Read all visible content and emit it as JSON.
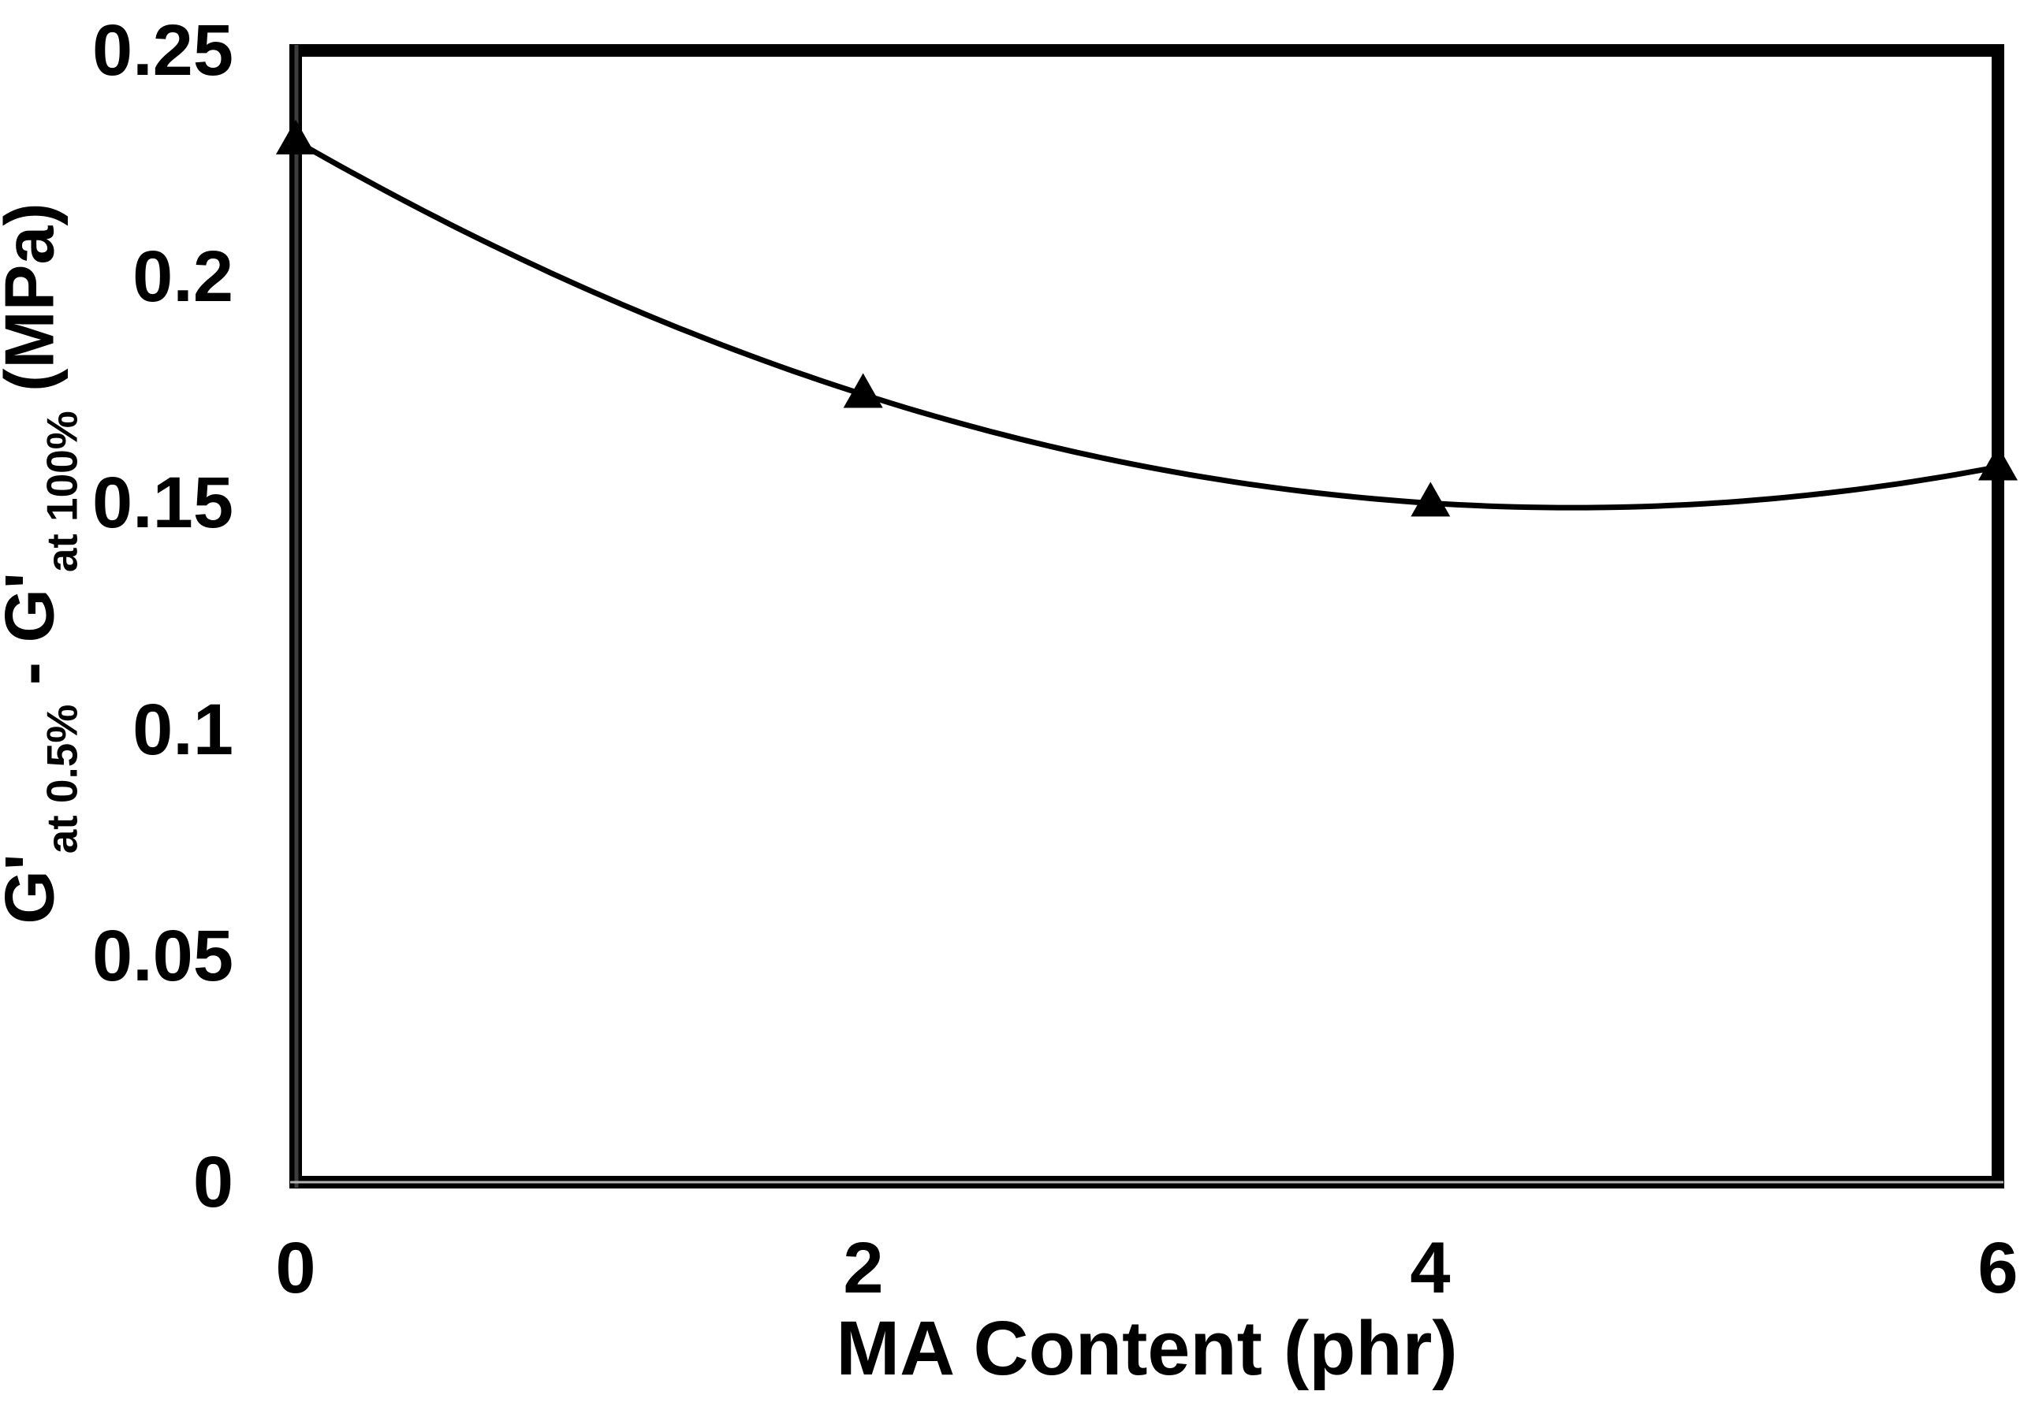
{
  "chart_data": {
    "type": "scatter",
    "title": "",
    "xlabel": "MA Content (phr)",
    "ylabel": "G'at 0.5% - G'at 100% (MPa)",
    "ylabel_parts": [
      {
        "text": "G'",
        "sub": false
      },
      {
        "text": "at 0.5%",
        "sub": true
      },
      {
        "text": " - ",
        "sub": false
      },
      {
        "text": "G'",
        "sub": false
      },
      {
        "text": "at 100%",
        "sub": true
      },
      {
        "text": " (MPa)",
        "sub": false
      }
    ],
    "x": [
      0,
      2,
      4,
      6
    ],
    "y": [
      0.23,
      0.174,
      0.15,
      0.158
    ],
    "xlim": [
      0,
      6
    ],
    "ylim": [
      0,
      0.25
    ],
    "x_ticks": [
      0,
      2,
      4,
      6
    ],
    "x_tick_labels": [
      "0",
      "2",
      "4",
      "6"
    ],
    "y_ticks": [
      0,
      0.05,
      0.1,
      0.15,
      0.2,
      0.25
    ],
    "y_tick_labels": [
      "0",
      "0.05",
      "0.1",
      "0.15",
      "0.2",
      "0.25"
    ],
    "marker": "filled-triangle-up",
    "marker_half_width": 25,
    "trendline": {
      "kind": "smooth-quadratic",
      "a": 0.004,
      "b": -0.036,
      "c": 0.23
    },
    "grid": false,
    "legend": null,
    "colors": {
      "series": "#000000",
      "marker": "#000000",
      "frame": "#000000",
      "axis_core_left": "#3d3d3d",
      "axis_core_bottom": "#b5b5b5",
      "background": "#ffffff",
      "text": "#000000"
    }
  }
}
